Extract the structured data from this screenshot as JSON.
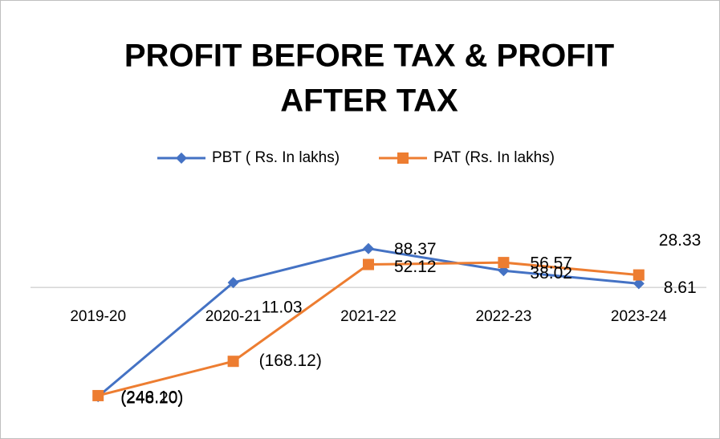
{
  "chart_data": {
    "type": "line",
    "title": [
      "PROFIT BEFORE TAX & PROFIT",
      "AFTER TAX"
    ],
    "categories": [
      "2019-20",
      "2020-21",
      "2021-22",
      "2022-23",
      "2023-24"
    ],
    "series": [
      {
        "name": "PBT ( Rs. In lakhs)",
        "color": "#4472c4",
        "marker": "diamond",
        "values": [
          -248.2,
          11.03,
          88.37,
          38.02,
          8.61
        ],
        "value_labels": [
          "(248.20)",
          "11.03",
          "88.37",
          "38.02",
          "8.61"
        ]
      },
      {
        "name": "PAT (Rs. In lakhs)",
        "color": "#ed7d31",
        "marker": "square",
        "values": [
          -246.1,
          -168.12,
          52.12,
          56.57,
          28.33
        ],
        "value_labels": [
          "(246.10)",
          "(168.12)",
          "52.12",
          "56.57",
          "28.33"
        ]
      }
    ],
    "ylim": [
      -332,
      232
    ]
  }
}
